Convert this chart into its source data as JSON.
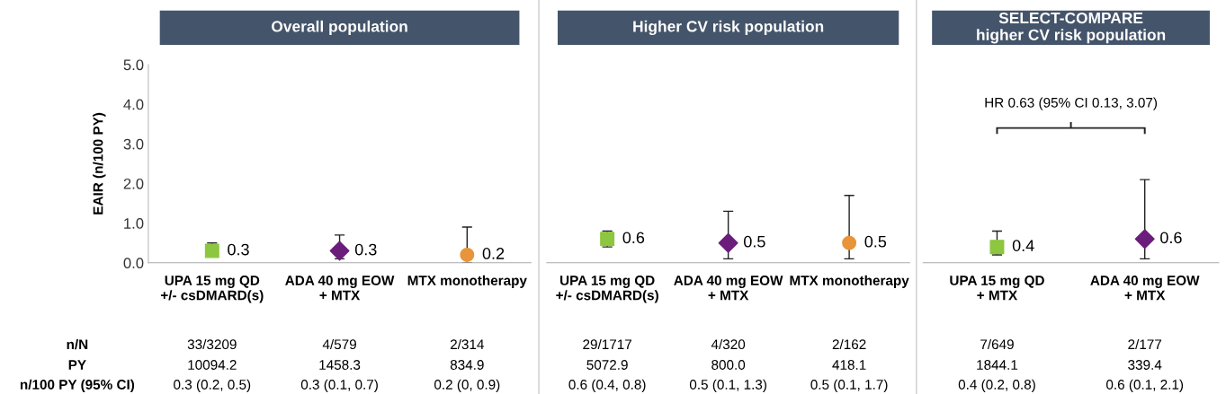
{
  "chart_data": [
    {
      "type": "scatter",
      "title": "Overall population",
      "ylabel": "EAIR (n/100 PY)",
      "categories": [
        "UPA 15 mg QD\n+/- csDMARD(s)",
        "ADA 40 mg EOW\n+ MTX",
        "MTX monotherapy"
      ],
      "ylim": [
        0,
        5
      ],
      "yticks": [
        {
          "value": 0,
          "label": "0.0"
        },
        {
          "value": 1,
          "label": "1.0"
        },
        {
          "value": 2,
          "label": "2.0"
        },
        {
          "value": 3,
          "label": "3.0"
        },
        {
          "value": 4,
          "label": "4.0"
        },
        {
          "value": 5,
          "label": "5.0"
        }
      ],
      "grid": false,
      "data_labels": true,
      "series": [
        {
          "color": "#8dc63f",
          "marker": "square",
          "values": [
            0.3,
            null,
            null
          ],
          "errors": [
            [
              0.3,
              0.5
            ],
            null,
            null
          ]
        },
        {
          "color": "#6b1d7b",
          "marker": "diamond",
          "values": [
            null,
            0.3,
            null
          ],
          "errors": [
            null,
            [
              0.1,
              0.7
            ],
            null
          ]
        },
        {
          "color": "#e8943a",
          "marker": "circle",
          "values": [
            null,
            null,
            0.2
          ],
          "errors": [
            null,
            null,
            [
              0,
              0.9
            ]
          ]
        }
      ],
      "annotations": [
        "n/N",
        "33/3209",
        "4/579",
        "2/314",
        "PY",
        "10094.2",
        "1458.3",
        "834.9",
        "n/100 PY (95% CI)",
        "0.3 (0.2, 0.5)",
        "0.3 (0.1, 0.7)",
        "0.2 (0, 0.9)"
      ]
    },
    {
      "type": "scatter",
      "title": "Higher CV risk population",
      "categories": [
        "UPA 15 mg QD\n+/- csDMARD(s)",
        "ADA 40 mg EOW\n+ MTX",
        "MTX monotherapy"
      ],
      "ylim": [
        0,
        5
      ],
      "grid": false,
      "data_labels": true,
      "tick_labels": "x",
      "series": [
        {
          "color": "#8dc63f",
          "marker": "square",
          "values": [
            0.6,
            null,
            null
          ],
          "errors": [
            [
              0.4,
              0.8
            ],
            null,
            null
          ]
        },
        {
          "color": "#6b1d7b",
          "marker": "diamond",
          "values": [
            null,
            0.5,
            null
          ],
          "errors": [
            null,
            [
              0.1,
              1.3
            ],
            null
          ]
        },
        {
          "color": "#e8943a",
          "marker": "circle",
          "values": [
            null,
            null,
            0.5
          ],
          "errors": [
            null,
            null,
            [
              0.1,
              1.7
            ]
          ]
        }
      ],
      "annotations": [
        "29/1717",
        "4/320",
        "2/162",
        "5072.9",
        "800.0",
        "418.1",
        "0.6 (0.4, 0.8)",
        "0.5 (0.1, 1.3)",
        "0.5 (0.1, 1.7)"
      ]
    },
    {
      "type": "scatter",
      "title": "SELECT-COMPARE\nhigher CV risk population",
      "categories": [
        "UPA 15 mg QD\n+ MTX",
        "ADA 40 mg EOW\n+ MTX"
      ],
      "ylim": [
        0,
        5
      ],
      "grid": false,
      "data_labels": true,
      "tick_labels": "x",
      "series": [
        {
          "color": "#8dc63f",
          "marker": "square",
          "values": [
            0.4,
            null
          ],
          "errors": [
            [
              0.2,
              0.8
            ],
            null
          ]
        },
        {
          "color": "#6b1d7b",
          "marker": "diamond",
          "values": [
            null,
            0.6
          ],
          "errors": [
            null,
            [
              0.1,
              2.1
            ]
          ]
        }
      ],
      "annotations": [
        "7/649",
        "2/177",
        "1844.1",
        "339.4",
        "0.4 (0.2, 0.8)",
        "0.6 (0.1, 2.1)",
        "HR 0.63 (95% CI 0.13, 3.07)"
      ]
    }
  ]
}
